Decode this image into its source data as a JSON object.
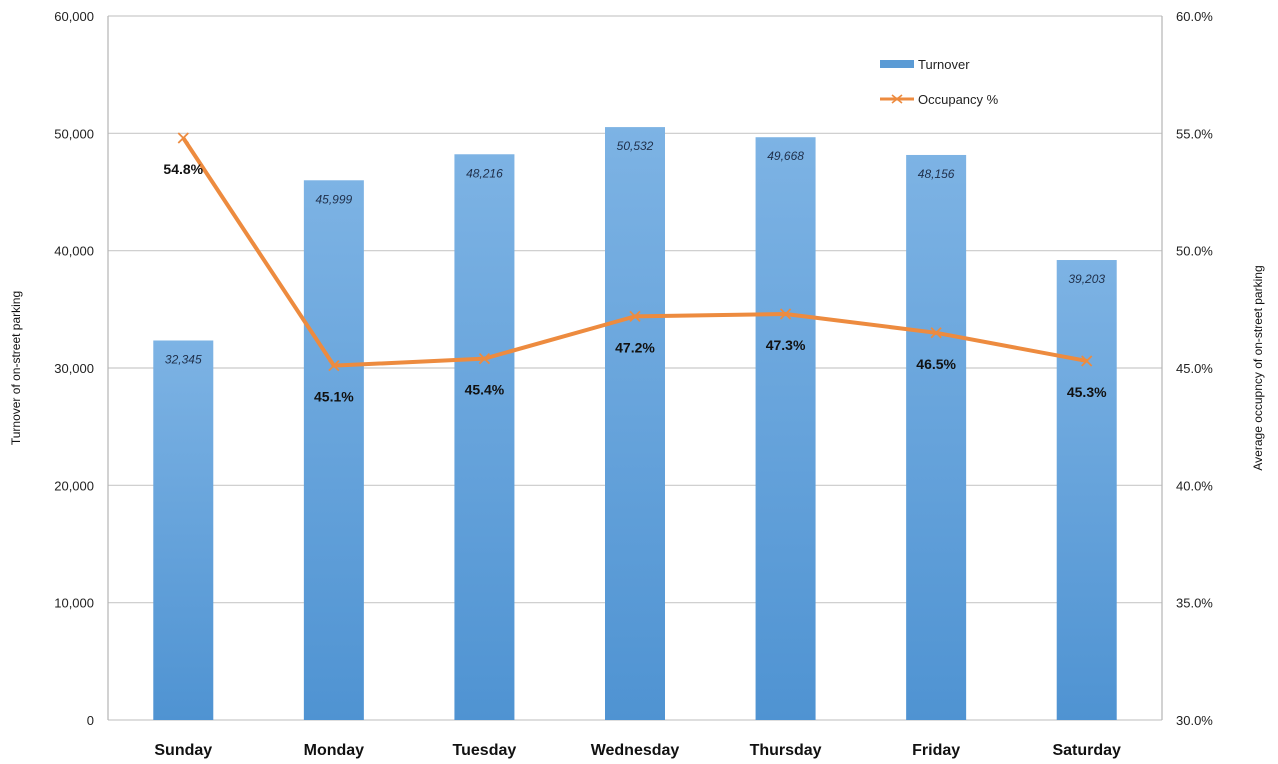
{
  "chart_data": {
    "type": "bar",
    "categories": [
      "Sunday",
      "Monday",
      "Tuesday",
      "Wednesday",
      "Thursday",
      "Friday",
      "Saturday"
    ],
    "series": [
      {
        "name": "Turnover",
        "type": "bar",
        "axis": "left",
        "values": [
          32345,
          45999,
          48216,
          50532,
          49668,
          48156,
          39203
        ],
        "labels": [
          "32,345",
          "45,999",
          "48,216",
          "50,532",
          "49,668",
          "48,156",
          "39,203"
        ],
        "color": "#5b9bd5"
      },
      {
        "name": "Occupancy %",
        "type": "line",
        "axis": "right",
        "values": [
          54.8,
          45.1,
          45.4,
          47.2,
          47.3,
          46.5,
          45.3
        ],
        "labels": [
          "54.8%",
          "45.1%",
          "45.4%",
          "47.2%",
          "47.3%",
          "46.5%",
          "45.3%"
        ],
        "color": "#ed8b3f"
      }
    ],
    "ylabel": "Turnover of on-street parking",
    "y2label": "Average occupncy of on-street parking",
    "ylim": [
      0,
      60000
    ],
    "y2lim": [
      30,
      60
    ],
    "yticks": [
      "0",
      "10,000",
      "20,000",
      "30,000",
      "40,000",
      "50,000",
      "60,000"
    ],
    "y2ticks": [
      "30.0%",
      "35.0%",
      "40.0%",
      "45.0%",
      "50.0%",
      "55.0%",
      "60.0%"
    ],
    "grid": true,
    "legend": "top-right"
  }
}
